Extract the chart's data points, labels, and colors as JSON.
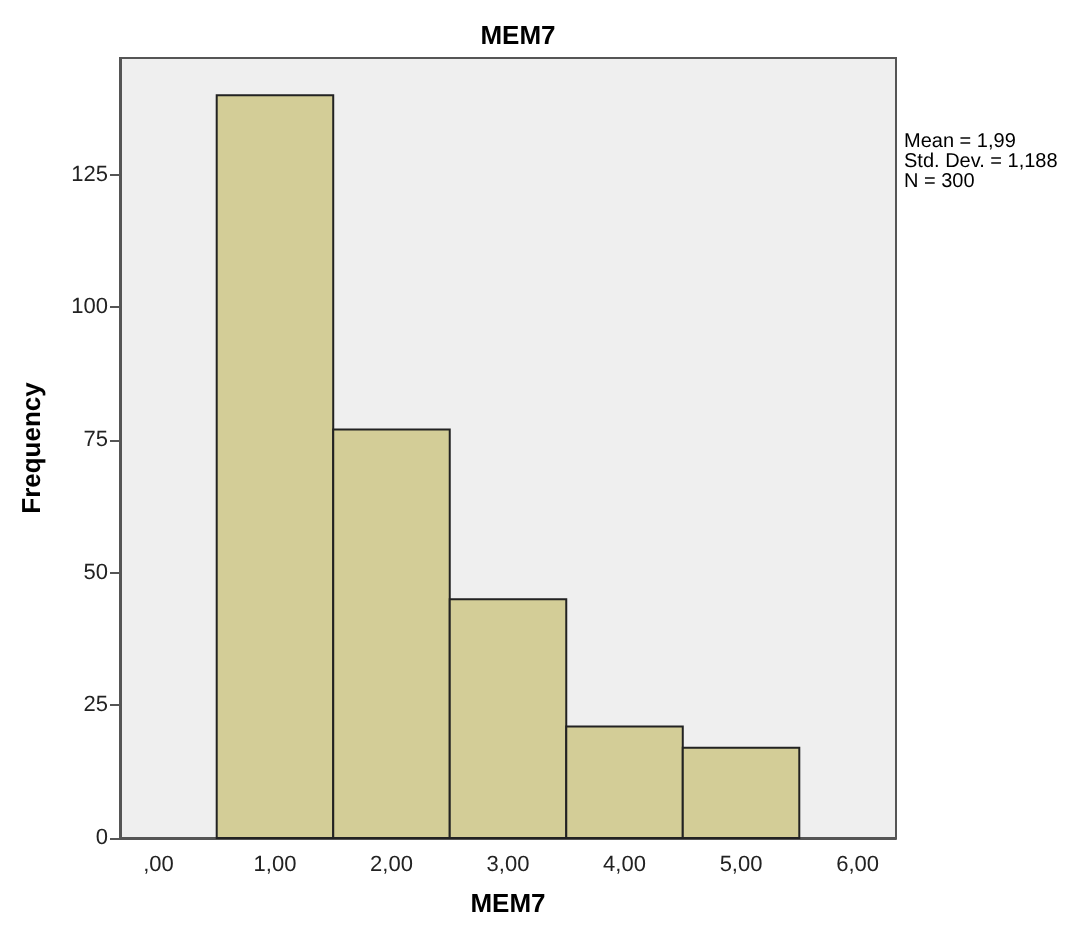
{
  "chart_data": {
    "type": "histogram",
    "title": "MEM7",
    "xlabel": "MEM7",
    "ylabel": "Frequency",
    "bins": [
      0.5,
      1.5,
      2.5,
      3.5,
      4.5,
      5.5
    ],
    "values": [
      140,
      77,
      45,
      21,
      17
    ],
    "color": "#d3cd97",
    "xlim": [
      -0.33,
      6.33
    ],
    "xticks": [
      {
        "value": 0,
        "label": ",00"
      },
      {
        "value": 1,
        "label": "1,00"
      },
      {
        "value": 2,
        "label": "2,00"
      },
      {
        "value": 3,
        "label": "3,00"
      },
      {
        "value": 4,
        "label": "4,00"
      },
      {
        "value": 5,
        "label": "5,00"
      },
      {
        "value": 6,
        "label": "6,00"
      }
    ],
    "ylim": [
      0,
      147
    ],
    "yticks": [
      0,
      25,
      50,
      75,
      100,
      125
    ],
    "annotations": [
      "Mean = 1,99",
      "Std. Dev. = 1,188",
      "N = 300"
    ],
    "grid": false
  }
}
